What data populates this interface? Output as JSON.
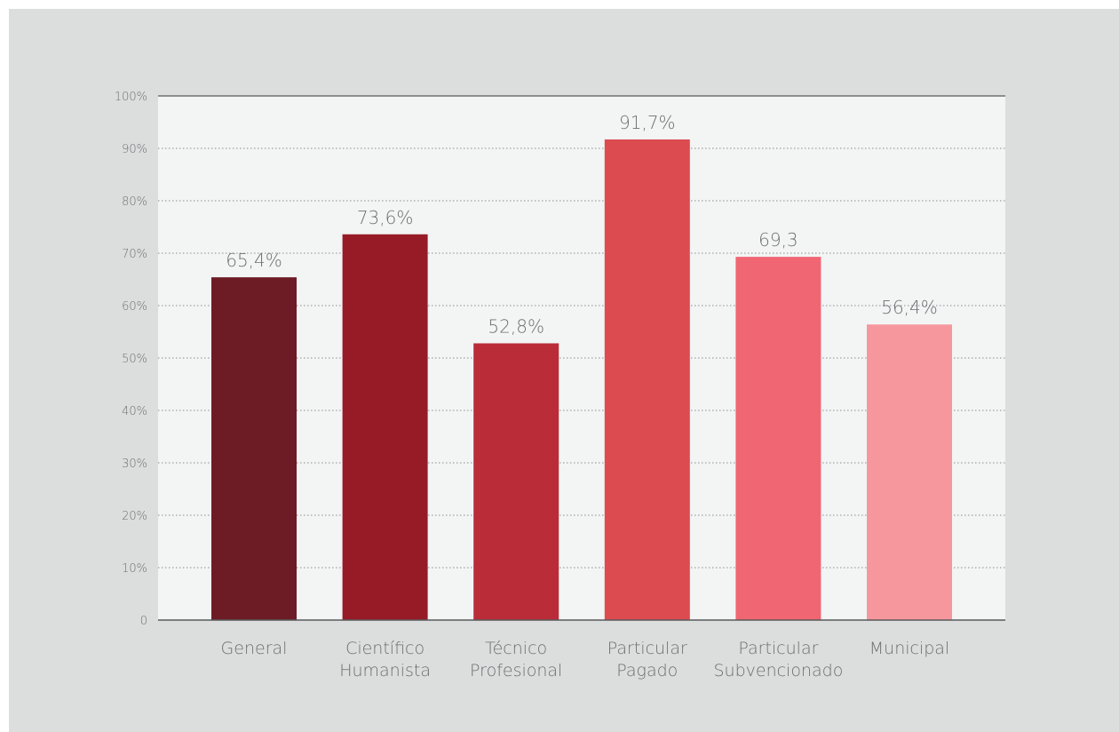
{
  "chart_data": {
    "type": "bar",
    "categories": [
      [
        "General"
      ],
      [
        "Científico",
        "Humanista"
      ],
      [
        "Técnico",
        "Profesional"
      ],
      [
        "Particular",
        "Pagado"
      ],
      [
        "Particular",
        "Subvencionado"
      ],
      [
        "Municipal"
      ]
    ],
    "values": [
      65.4,
      73.6,
      52.8,
      91.7,
      69.3,
      56.4
    ],
    "data_labels": [
      "65,4%",
      "73,6%",
      "52,8%",
      "91,7%",
      "69,3",
      "56,4%"
    ],
    "colors": [
      "#6d1c25",
      "#961b27",
      "#bb2c39",
      "#db4b50",
      "#f06672",
      "#f6979d"
    ],
    "ylim": [
      0,
      100
    ],
    "yticks": [
      {
        "value": 0,
        "label": "0"
      },
      {
        "value": 10,
        "label": "10%"
      },
      {
        "value": 20,
        "label": "20%"
      },
      {
        "value": 30,
        "label": "30%"
      },
      {
        "value": 40,
        "label": "40%"
      },
      {
        "value": 50,
        "label": "50%"
      },
      {
        "value": 60,
        "label": "60%"
      },
      {
        "value": 70,
        "label": "70%"
      },
      {
        "value": 80,
        "label": "80%"
      },
      {
        "value": 90,
        "label": "90%"
      },
      {
        "value": 100,
        "label": "100%"
      }
    ],
    "grid": "dotted horizontal",
    "title": "",
    "xlabel": "",
    "ylabel": ""
  }
}
